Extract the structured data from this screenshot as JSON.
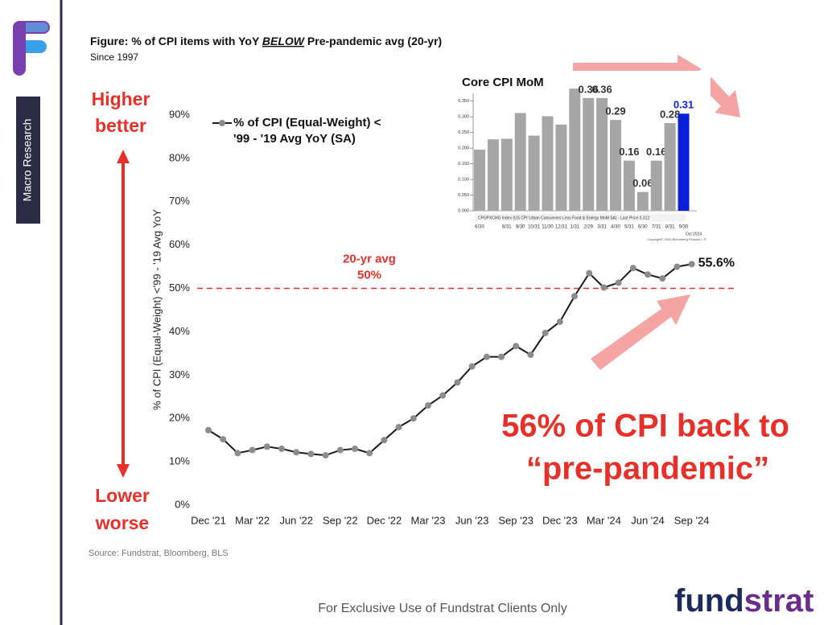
{
  "header": {
    "title_parts": [
      "Figure: % of CPI items with YoY ",
      "BELOW",
      " Pre-pandemic avg (20-yr)"
    ],
    "subtitle": "Since 1997",
    "sidebar": "Macro Research"
  },
  "chart_data": [
    {
      "type": "line",
      "y_label": "% of CPI (Equal-Weight)  <'99 - '19 Avg YoY",
      "categories": [
        "Dec '21",
        null,
        null,
        "Mar '22",
        null,
        null,
        "Jun '22",
        null,
        null,
        "Sep '22",
        null,
        null,
        "Dec '22",
        null,
        null,
        "Mar '23",
        null,
        null,
        "Jun '23",
        null,
        null,
        "Sep '23",
        null,
        null,
        "Dec '23",
        null,
        null,
        "Mar '24",
        null,
        null,
        "Jun '24",
        null,
        null,
        "Sep '24"
      ],
      "series": [
        {
          "name": "% of CPI (Equal-Weight) < '99 - '19 Avg YoY (SA)",
          "color": "#1a1a1a",
          "marker_color": "#8c8c8c",
          "values": [
            17.3,
            15.2,
            12.0,
            12.7,
            13.5,
            13.0,
            12.2,
            11.8,
            11.5,
            12.7,
            13.0,
            12.0,
            15.0,
            18.0,
            20.0,
            23.0,
            25.3,
            28.3,
            32.0,
            34.2,
            34.2,
            36.7,
            34.7,
            39.7,
            42.3,
            48.2,
            53.5,
            50.2,
            51.3,
            54.7,
            53.2,
            52.3,
            55.0,
            55.6
          ],
          "value_labels": [
            null,
            null,
            null,
            null,
            null,
            null,
            null,
            null,
            null,
            null,
            null,
            null,
            null,
            null,
            null,
            null,
            null,
            null,
            null,
            null,
            null,
            null,
            null,
            null,
            null,
            null,
            null,
            null,
            null,
            null,
            null,
            null,
            null,
            "55.6%"
          ]
        }
      ],
      "ylim": [
        0,
        95
      ],
      "yticks": [
        {
          "value": 0,
          "label": "0%"
        },
        {
          "value": 10,
          "label": "10%"
        },
        {
          "value": 20,
          "label": "20%"
        },
        {
          "value": 30,
          "label": "30%"
        },
        {
          "value": 40,
          "label": "40%"
        },
        {
          "value": 50,
          "label": "50%"
        },
        {
          "value": 60,
          "label": "60%"
        },
        {
          "value": 70,
          "label": "70%"
        },
        {
          "value": 80,
          "label": "80%"
        },
        {
          "value": 90,
          "label": "90%"
        }
      ],
      "reference_line": {
        "value": 50,
        "color": "#e8302a",
        "label_lines": [
          "20-yr avg",
          "50%"
        ]
      },
      "grid": false
    },
    {
      "type": "bar",
      "title": "Core CPI MoM",
      "categories": [
        "6/30",
        null,
        "8/31",
        "9/30",
        "10/31",
        "11/30",
        "12/31",
        "1/31",
        "2/29",
        "3/31",
        "4/30",
        "5/31",
        "6/30",
        "7/31",
        "8/31",
        "9/30"
      ],
      "values": [
        0.195,
        0.228,
        0.23,
        0.312,
        0.24,
        0.302,
        0.275,
        0.39,
        0.36,
        0.36,
        0.29,
        0.16,
        0.06,
        0.16,
        0.28,
        0.31
      ],
      "value_labels": [
        null,
        null,
        null,
        null,
        null,
        null,
        null,
        null,
        "0.36",
        "0.36",
        "0.29",
        "0.16",
        "0.06",
        "0.16",
        "0.28",
        "0.31"
      ],
      "colors": [
        "#a6a6a6",
        "#a6a6a6",
        "#a6a6a6",
        "#a6a6a6",
        "#a6a6a6",
        "#a6a6a6",
        "#a6a6a6",
        "#a6a6a6",
        "#a6a6a6",
        "#a6a6a6",
        "#a6a6a6",
        "#a6a6a6",
        "#a6a6a6",
        "#a6a6a6",
        "#a6a6a6",
        "#0b1fd6"
      ],
      "ylim": [
        0,
        0.375
      ],
      "yticks": [
        {
          "value": 0,
          "label": "0.000"
        },
        {
          "value": 0.05,
          "label": "0.050"
        },
        {
          "value": 0.1,
          "label": "0.100"
        },
        {
          "value": 0.15,
          "label": "0.150"
        },
        {
          "value": 0.2,
          "label": "0.200"
        },
        {
          "value": 0.25,
          "label": "0.250"
        },
        {
          "value": 0.3,
          "label": "0.300"
        },
        {
          "value": 0.35,
          "label": "0.350"
        }
      ],
      "legend_text": "CPUPXCHG Index (US CPI Urban Consumers Less Food & Energy MoM SA) - Last Price 0.312",
      "date_label": "Oct 2024",
      "footnote": "Copyright© 2024 Bloomberg Finance L.P."
    }
  ],
  "annotations": {
    "higher": [
      "Higher",
      "better"
    ],
    "lower": [
      "Lower",
      "worse"
    ],
    "callout": [
      "56% of CPI back to",
      "“pre-pandemic”"
    ]
  },
  "footer": {
    "source": "Source: Fundstrat, Bloomberg, BLS",
    "notice": "For Exclusive Use of Fundstrat Clients Only",
    "brand": [
      "fund",
      "strat"
    ]
  }
}
